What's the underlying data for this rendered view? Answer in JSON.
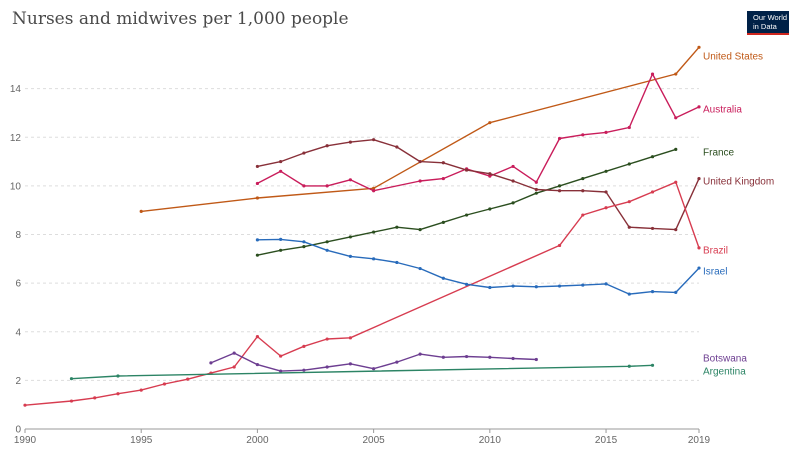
{
  "header": {
    "title": "Nurses and midwives per 1,000 people",
    "logo_line1": "Our World",
    "logo_line2": "in Data"
  },
  "chart_data": {
    "type": "line",
    "title": "Nurses and midwives per 1,000 people",
    "xlim": [
      1990,
      2019
    ],
    "ylim": [
      0,
      16
    ],
    "x_ticks": [
      "1990",
      "1995",
      "2000",
      "2005",
      "2010",
      "2015",
      "2019"
    ],
    "y_ticks": [
      "0",
      "2",
      "4",
      "6",
      "8",
      "10",
      "12",
      "14"
    ],
    "grid": "horizontal dashed",
    "series": [
      {
        "name": "United States",
        "color": "#c05917",
        "x": [
          1995,
          2000,
          2005,
          2010,
          2018,
          2019
        ],
        "y": [
          8.95,
          9.5,
          9.9,
          12.6,
          14.6,
          15.7
        ]
      },
      {
        "name": "Australia",
        "color": "#c91d5b",
        "x": [
          2000,
          2001,
          2002,
          2003,
          2004,
          2005,
          2007,
          2008,
          2009,
          2010,
          2011,
          2012,
          2013,
          2014,
          2015,
          2016,
          2017,
          2018,
          2019
        ],
        "y": [
          10.1,
          10.6,
          10.0,
          10.0,
          10.25,
          9.8,
          10.2,
          10.3,
          10.7,
          10.4,
          10.8,
          10.15,
          11.95,
          12.1,
          12.2,
          12.4,
          14.6,
          12.8,
          13.25
        ]
      },
      {
        "name": "France",
        "color": "#2b4e1f",
        "x": [
          2000,
          2001,
          2002,
          2003,
          2004,
          2005,
          2006,
          2007,
          2008,
          2009,
          2010,
          2011,
          2012,
          2013,
          2014,
          2015,
          2016,
          2017,
          2018
        ],
        "y": [
          7.15,
          7.35,
          7.5,
          7.7,
          7.9,
          8.1,
          8.3,
          8.2,
          8.5,
          8.8,
          9.05,
          9.3,
          9.7,
          10.0,
          10.3,
          10.6,
          10.9,
          11.2,
          11.5
        ]
      },
      {
        "name": "United Kingdom",
        "color": "#883039",
        "x": [
          2000,
          2001,
          2002,
          2003,
          2004,
          2005,
          2006,
          2007,
          2008,
          2009,
          2010,
          2011,
          2012,
          2013,
          2014,
          2015,
          2016,
          2017,
          2018,
          2019
        ],
        "y": [
          10.8,
          11.0,
          11.35,
          11.65,
          11.8,
          11.9,
          11.6,
          11.0,
          10.95,
          10.65,
          10.5,
          10.2,
          9.85,
          9.8,
          9.8,
          9.75,
          8.3,
          8.25,
          8.2,
          10.3
        ]
      },
      {
        "name": "Brazil",
        "color": "#d73c50",
        "x": [
          1990,
          1992,
          1993,
          1994,
          1995,
          1996,
          1997,
          1998,
          1999,
          2000,
          2001,
          2002,
          2003,
          2004,
          2013,
          2014,
          2015,
          2016,
          2017,
          2018,
          2019
        ],
        "y": [
          0.98,
          1.15,
          1.28,
          1.45,
          1.6,
          1.85,
          2.05,
          2.3,
          2.55,
          3.8,
          3.0,
          3.4,
          3.7,
          3.75,
          7.55,
          8.8,
          9.1,
          9.35,
          9.75,
          10.15,
          7.45
        ]
      },
      {
        "name": "Israel",
        "color": "#286bbb",
        "x": [
          2000,
          2001,
          2002,
          2003,
          2004,
          2005,
          2006,
          2007,
          2008,
          2009,
          2010,
          2011,
          2012,
          2013,
          2014,
          2015,
          2016,
          2017,
          2018,
          2019
        ],
        "y": [
          7.78,
          7.8,
          7.7,
          7.35,
          7.1,
          7.0,
          6.85,
          6.6,
          6.2,
          5.95,
          5.82,
          5.88,
          5.85,
          5.88,
          5.92,
          5.97,
          5.55,
          5.65,
          5.62,
          6.62
        ]
      },
      {
        "name": "Botswana",
        "color": "#6d3e91",
        "x": [
          1998,
          1999,
          2000,
          2001,
          2002,
          2003,
          2004,
          2005,
          2006,
          2007,
          2008,
          2009,
          2010,
          2011,
          2012
        ],
        "y": [
          2.72,
          3.12,
          2.65,
          2.38,
          2.42,
          2.55,
          2.68,
          2.48,
          2.75,
          3.08,
          2.95,
          2.98,
          2.95,
          2.9,
          2.86
        ]
      },
      {
        "name": "Argentina",
        "color": "#2c8465",
        "x": [
          1992,
          1994,
          2016,
          2017
        ],
        "y": [
          2.07,
          2.18,
          2.58,
          2.62
        ]
      }
    ]
  }
}
